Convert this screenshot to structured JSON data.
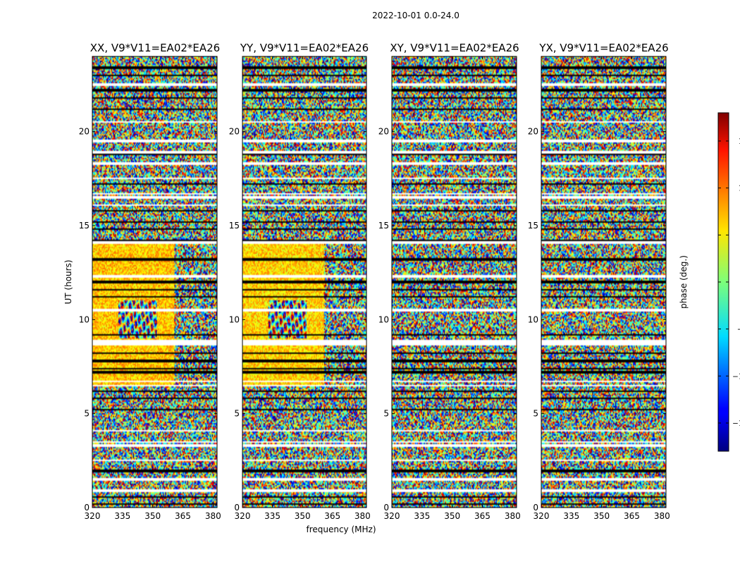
{
  "chart_data": {
    "type": "heatmap",
    "title": "2022-10-01 0.0-24.0",
    "xlabel": "frequency (MHz)",
    "ylabel": "UT (hours)",
    "xlim": [
      320,
      382
    ],
    "ylim": [
      0,
      24
    ],
    "xticks": [
      320,
      335,
      350,
      365,
      380
    ],
    "yticks": [
      0,
      5,
      10,
      15,
      20
    ],
    "colorbar": {
      "label": "phase (deg.)",
      "colormap": "jet",
      "range": [
        -180,
        180
      ],
      "ticks": [
        150,
        100,
        50,
        0,
        -50,
        -100,
        -150
      ],
      "tick_labels": [
        "150",
        "100",
        "50",
        "0",
        "−50",
        "−100",
        "−150"
      ]
    },
    "panels": [
      {
        "title": "XX, V9*V11=EA02*EA26",
        "coherent_region": {
          "freq_range": [
            320,
            361
          ],
          "ut_range": [
            6.5,
            14.1
          ],
          "mean_phase_deg": 65
        }
      },
      {
        "title": "YY, V9*V11=EA02*EA26",
        "coherent_region": {
          "freq_range": [
            320,
            361
          ],
          "ut_range": [
            6.5,
            14.1
          ],
          "mean_phase_deg": 60
        }
      },
      {
        "title": "XY, V9*V11=EA02*EA26",
        "coherent_region": null
      },
      {
        "title": "YX, V9*V11=EA02*EA26",
        "coherent_region": null
      }
    ],
    "flagged_ut_hours": [
      0.2,
      0.55,
      0.9,
      1.5,
      1.95,
      2.5,
      3.3,
      3.5,
      4.1,
      5.2,
      5.8,
      6.2,
      6.5,
      6.7,
      7.2,
      7.4,
      7.8,
      8.2,
      8.7,
      8.85,
      9.2,
      10.5,
      11.2,
      11.6,
      12.0,
      12.3,
      13.2,
      14.1,
      14.2,
      14.8,
      15.2,
      15.8,
      16.1,
      16.5,
      16.7,
      17.2,
      17.5,
      18.3,
      18.8,
      18.9,
      19.5,
      20.5,
      21.2,
      21.8,
      22.2,
      22.5,
      23.0,
      23.4
    ]
  }
}
